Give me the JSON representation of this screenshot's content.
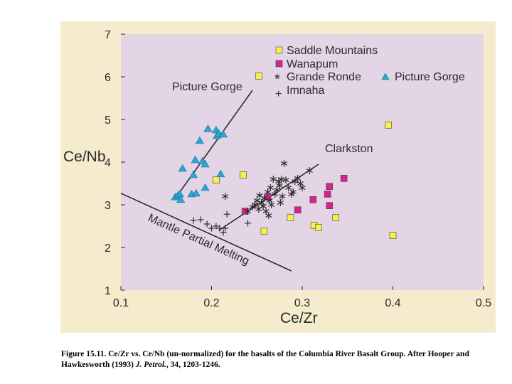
{
  "chart_data": {
    "type": "scatter",
    "title": "",
    "xlabel": "Ce/Zr",
    "ylabel": "Ce/Nb",
    "xlim": [
      0.1,
      0.5
    ],
    "ylim": [
      1,
      7
    ],
    "xticks": [
      "0.1",
      "0.2",
      "0.3",
      "0.4",
      "0.5"
    ],
    "yticks": [
      "1",
      "2",
      "3",
      "4",
      "5",
      "6",
      "7"
    ],
    "colors": {
      "plot_bg": "#e3d4e6",
      "panel_bg": "#f5ebcd",
      "saddle": "#f5f04a",
      "wanapum": "#d6248a",
      "picture_gorge": "#2aa8d2",
      "ink": "#2a2a2a"
    },
    "series": [
      {
        "name": "Saddle Mountains",
        "marker": "square",
        "points": [
          [
            0.205,
            3.58
          ],
          [
            0.235,
            3.7
          ],
          [
            0.258,
            2.38
          ],
          [
            0.287,
            2.7
          ],
          [
            0.313,
            2.52
          ],
          [
            0.318,
            2.47
          ],
          [
            0.337,
            2.7
          ],
          [
            0.395,
            4.87
          ],
          [
            0.4,
            2.28
          ],
          [
            0.252,
            6.02
          ]
        ]
      },
      {
        "name": "Wanapum",
        "marker": "square",
        "points": [
          [
            0.237,
            2.85
          ],
          [
            0.262,
            3.18
          ],
          [
            0.295,
            2.88
          ],
          [
            0.312,
            3.12
          ],
          [
            0.328,
            3.25
          ],
          [
            0.33,
            3.43
          ],
          [
            0.33,
            2.98
          ],
          [
            0.346,
            3.62
          ]
        ]
      },
      {
        "name": "Grande Ronde",
        "marker": "asterisk",
        "points": [
          [
            0.215,
            3.2
          ],
          [
            0.24,
            2.85
          ],
          [
            0.245,
            2.95
          ],
          [
            0.248,
            3.0
          ],
          [
            0.25,
            3.1
          ],
          [
            0.252,
            2.9
          ],
          [
            0.253,
            3.22
          ],
          [
            0.255,
            3.05
          ],
          [
            0.257,
            2.97
          ],
          [
            0.258,
            3.15
          ],
          [
            0.26,
            2.85
          ],
          [
            0.262,
            3.3
          ],
          [
            0.264,
            3.1
          ],
          [
            0.265,
            3.4
          ],
          [
            0.266,
            3.0
          ],
          [
            0.268,
            3.6
          ],
          [
            0.27,
            3.25
          ],
          [
            0.272,
            3.35
          ],
          [
            0.274,
            3.55
          ],
          [
            0.275,
            3.45
          ],
          [
            0.277,
            3.6
          ],
          [
            0.278,
            3.2
          ],
          [
            0.28,
            3.97
          ],
          [
            0.282,
            3.58
          ],
          [
            0.285,
            3.4
          ],
          [
            0.288,
            3.25
          ],
          [
            0.29,
            3.3
          ],
          [
            0.292,
            3.55
          ],
          [
            0.295,
            3.62
          ],
          [
            0.298,
            3.5
          ],
          [
            0.3,
            3.4
          ],
          [
            0.308,
            3.8
          ],
          [
            0.276,
            3.05
          ],
          [
            0.263,
            2.75
          ]
        ]
      },
      {
        "name": "Picture Gorge",
        "marker": "triangle",
        "points": [
          [
            0.16,
            3.18
          ],
          [
            0.163,
            3.22
          ],
          [
            0.165,
            3.25
          ],
          [
            0.166,
            3.12
          ],
          [
            0.168,
            3.85
          ],
          [
            0.178,
            3.25
          ],
          [
            0.18,
            3.7
          ],
          [
            0.182,
            4.05
          ],
          [
            0.183,
            3.27
          ],
          [
            0.187,
            4.5
          ],
          [
            0.19,
            4.02
          ],
          [
            0.193,
            3.95
          ],
          [
            0.193,
            3.4
          ],
          [
            0.196,
            4.78
          ],
          [
            0.205,
            4.75
          ],
          [
            0.206,
            4.62
          ],
          [
            0.208,
            4.67
          ],
          [
            0.21,
            3.72
          ],
          [
            0.213,
            4.65
          ]
        ]
      },
      {
        "name": "Imnaha",
        "marker": "plus",
        "points": [
          [
            0.18,
            2.63
          ],
          [
            0.188,
            2.65
          ],
          [
            0.195,
            2.55
          ],
          [
            0.2,
            2.45
          ],
          [
            0.205,
            2.5
          ],
          [
            0.209,
            2.45
          ],
          [
            0.215,
            2.45
          ],
          [
            0.217,
            2.78
          ],
          [
            0.24,
            2.57
          ],
          [
            0.213,
            2.35
          ]
        ]
      }
    ],
    "trend_lines": [
      {
        "name": "Picture Gorge",
        "from": [
          0.16,
          3.15
        ],
        "to": [
          0.245,
          5.68
        ]
      },
      {
        "name": "Clarkston",
        "from": [
          0.208,
          2.4
        ],
        "to": [
          0.318,
          3.95
        ]
      },
      {
        "name": "Mantle Partial Melting",
        "from": [
          0.1,
          3.27
        ],
        "to": [
          0.288,
          1.45
        ]
      }
    ],
    "annotations": [
      "Picture Gorge",
      "Clarkston",
      "Mantle Partial Melting"
    ],
    "legend": {
      "placement": "top-right",
      "entries": [
        "Saddle Mountains",
        "Wanapum",
        "Grande Ronde",
        "Imnaha",
        "Picture Gorge"
      ]
    }
  },
  "caption": {
    "figure_label": "Figure 15.11.",
    "text_1": "Ce/Zr vs. Ce/Nb (un-normalized) for the basalts of the Columbia River Basalt Group. After Hooper and Hawkesworth (1993)",
    "journal": "J. Petrol.",
    "text_2": ", 34, 1203-1246."
  }
}
